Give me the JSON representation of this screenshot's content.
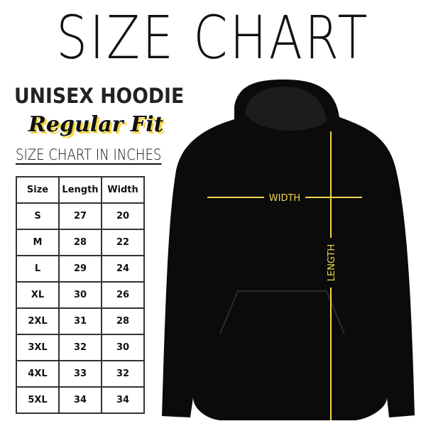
{
  "header": {
    "title": "SIZE CHART",
    "product": "UNISEX HOODIE",
    "fit": "Regular Fit",
    "unit_note": "SIZE CHART IN INCHES"
  },
  "table": {
    "columns": [
      "Size",
      "Length",
      "Width"
    ],
    "rows": [
      [
        "S",
        27,
        20
      ],
      [
        "M",
        28,
        22
      ],
      [
        "L",
        29,
        24
      ],
      [
        "XL",
        30,
        26
      ],
      [
        "2XL",
        31,
        28
      ],
      [
        "3XL",
        32,
        30
      ],
      [
        "4XL",
        33,
        32
      ],
      [
        "5XL",
        34,
        34
      ]
    ]
  },
  "diagram": {
    "width_label": "WIDTH",
    "length_label": "LENGTH"
  }
}
